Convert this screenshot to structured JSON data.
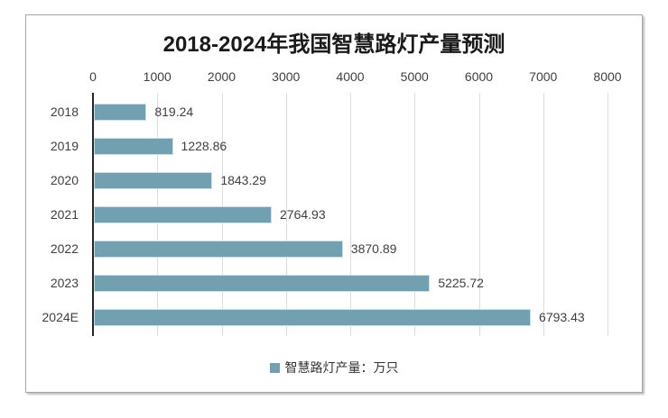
{
  "figure": {
    "title": "2018-2024年我国智慧路灯产量预测",
    "legend_label": "智慧路灯产量：万只"
  },
  "chart_data": {
    "type": "bar",
    "orientation": "horizontal",
    "title": "2018-2024年我国智慧路灯产量预测",
    "categories": [
      "2018",
      "2019",
      "2020",
      "2021",
      "2022",
      "2023",
      "2024E"
    ],
    "values": [
      819.24,
      1228.86,
      1843.29,
      2764.93,
      3870.89,
      5225.72,
      6793.43
    ],
    "data_labels": [
      "819.24",
      "1228.86",
      "1843.29",
      "2764.93",
      "3870.89",
      "5225.72",
      "6793.43"
    ],
    "xlabel": "",
    "ylabel": "",
    "x_axis": {
      "position": "top",
      "min": 0,
      "max": 8000,
      "tick_interval": 1000,
      "ticks": [
        0,
        1000,
        2000,
        3000,
        4000,
        5000,
        6000,
        7000,
        8000
      ]
    },
    "grid": "vertical",
    "legend": [
      "智慧路灯产量：万只"
    ],
    "legend_position": "bottom",
    "colors": {
      "bar_fill": "#73a0b1",
      "bar_edge": "#cde0e7",
      "gridline": "#dcdcdc",
      "axis_line": "#262626",
      "text": "#3f3f3f",
      "title_text": "#1a1a1a",
      "border": "#a6a6a6"
    }
  }
}
